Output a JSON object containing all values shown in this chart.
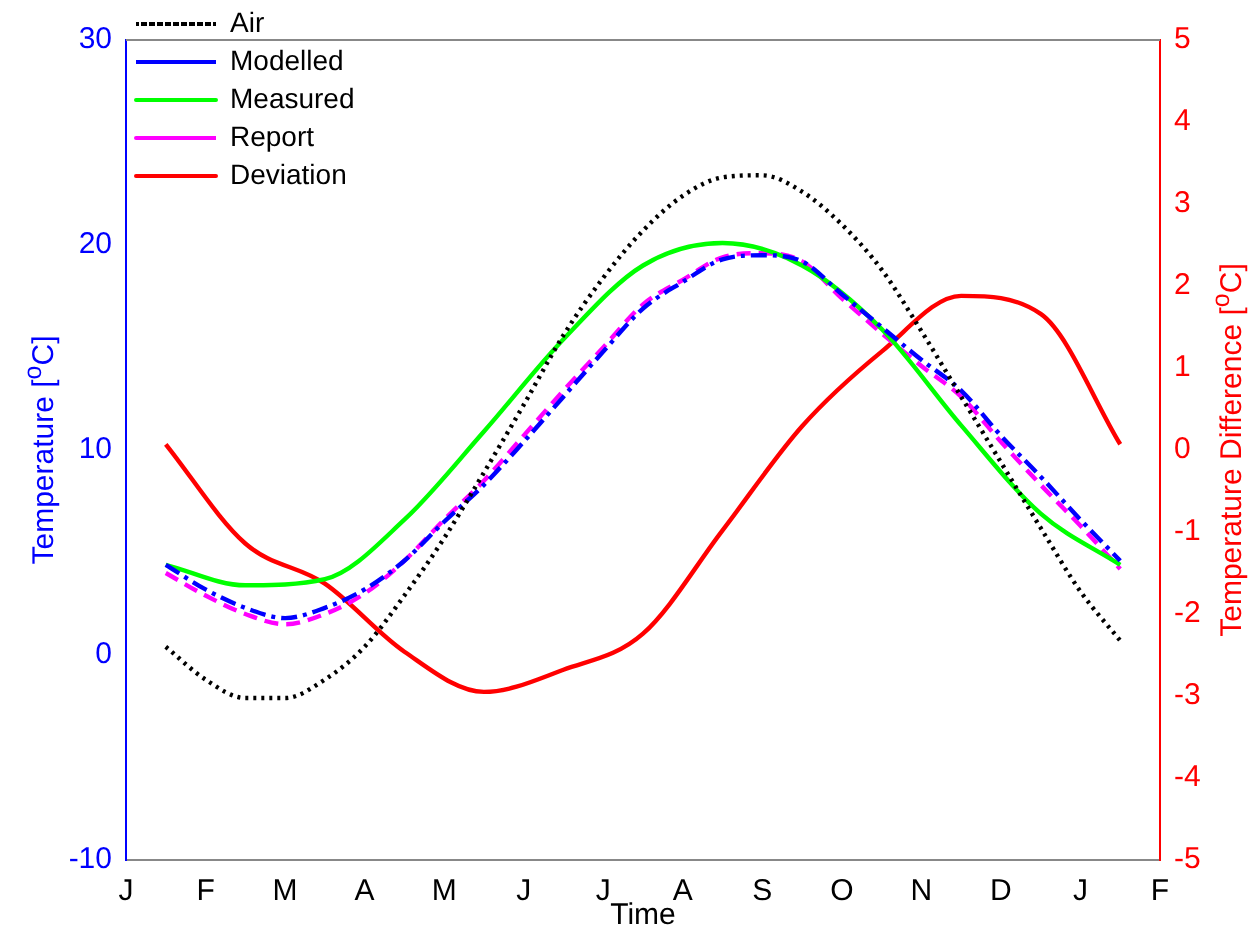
{
  "chart_data": {
    "type": "line",
    "xlabel": "Time",
    "ylabel": "Temperature [$^{o}$C]",
    "y2label": "Temperature Difference [$^{o}$C]",
    "categories": [
      "J",
      null,
      "F",
      null,
      "M",
      null,
      "A",
      null,
      "M",
      null,
      "J",
      null,
      "J",
      null,
      "A",
      null,
      "S",
      null,
      "O",
      null,
      "N",
      null,
      "D",
      null,
      "J",
      null,
      "F"
    ],
    "ylim": [
      -10,
      30
    ],
    "yticks": [
      -10,
      0,
      10,
      20,
      30
    ],
    "y2lim": [
      -5,
      5
    ],
    "y2ticks": [
      -5,
      -4,
      -3,
      -2,
      -1,
      0,
      1,
      2,
      3,
      4,
      5
    ],
    "grid": false,
    "legend": "top left",
    "marker": "none",
    "series": [
      {
        "name": "Air",
        "color": "#000000",
        "line_style": "dotted",
        "values": [
          null,
          0.4,
          -1.2,
          -2.1,
          -2.1,
          -1.2,
          0.4,
          2.9,
          5.7,
          8.9,
          12.2,
          15.6,
          18.4,
          20.7,
          22.4,
          23.3,
          23.4,
          22.6,
          21.0,
          18.8,
          15.8,
          12.6,
          9.4,
          6.2,
          3.1,
          0.7,
          null
        ]
      },
      {
        "name": "Modelled",
        "color": "#0000ff",
        "line_style": "dashdot",
        "values": [
          null,
          4.4,
          3.2,
          2.3,
          1.8,
          2.3,
          3.2,
          4.6,
          6.5,
          8.3,
          10.4,
          12.6,
          14.8,
          16.9,
          18.2,
          19.3,
          19.5,
          19.2,
          17.6,
          16.0,
          14.4,
          12.9,
          10.7,
          8.7,
          6.6,
          4.6,
          null
        ]
      },
      {
        "name": "Measured",
        "color": "#00ff00",
        "line_style": "solid",
        "values": [
          null,
          4.4,
          null,
          3.4,
          null,
          3.7,
          null,
          6.6,
          null,
          10.9,
          null,
          15.4,
          null,
          19.0,
          null,
          20.1,
          null,
          19.0,
          null,
          15.9,
          null,
          11.2,
          null,
          6.9,
          null,
          4.4,
          null
        ]
      },
      {
        "name": "Report",
        "color": "#ff00ff",
        "line_style": "dashed",
        "values": [
          null,
          4.0,
          2.9,
          2.0,
          1.5,
          2.0,
          3.0,
          4.6,
          6.6,
          8.5,
          10.7,
          12.9,
          15.0,
          17.1,
          18.3,
          19.4,
          19.6,
          19.2,
          17.4,
          15.7,
          14.1,
          12.6,
          10.4,
          8.3,
          6.3,
          4.2,
          null
        ]
      },
      {
        "name": "Deviation",
        "color": "#ff0000",
        "line_style": "solid",
        "axis": "y2",
        "values": [
          null,
          0.07,
          null,
          -1.14,
          null,
          -1.63,
          null,
          -2.46,
          null,
          -2.95,
          null,
          -2.68,
          null,
          -2.24,
          null,
          -0.98,
          null,
          0.29,
          null,
          1.2,
          null,
          1.88,
          null,
          1.66,
          null,
          0.07,
          null
        ]
      }
    ]
  }
}
